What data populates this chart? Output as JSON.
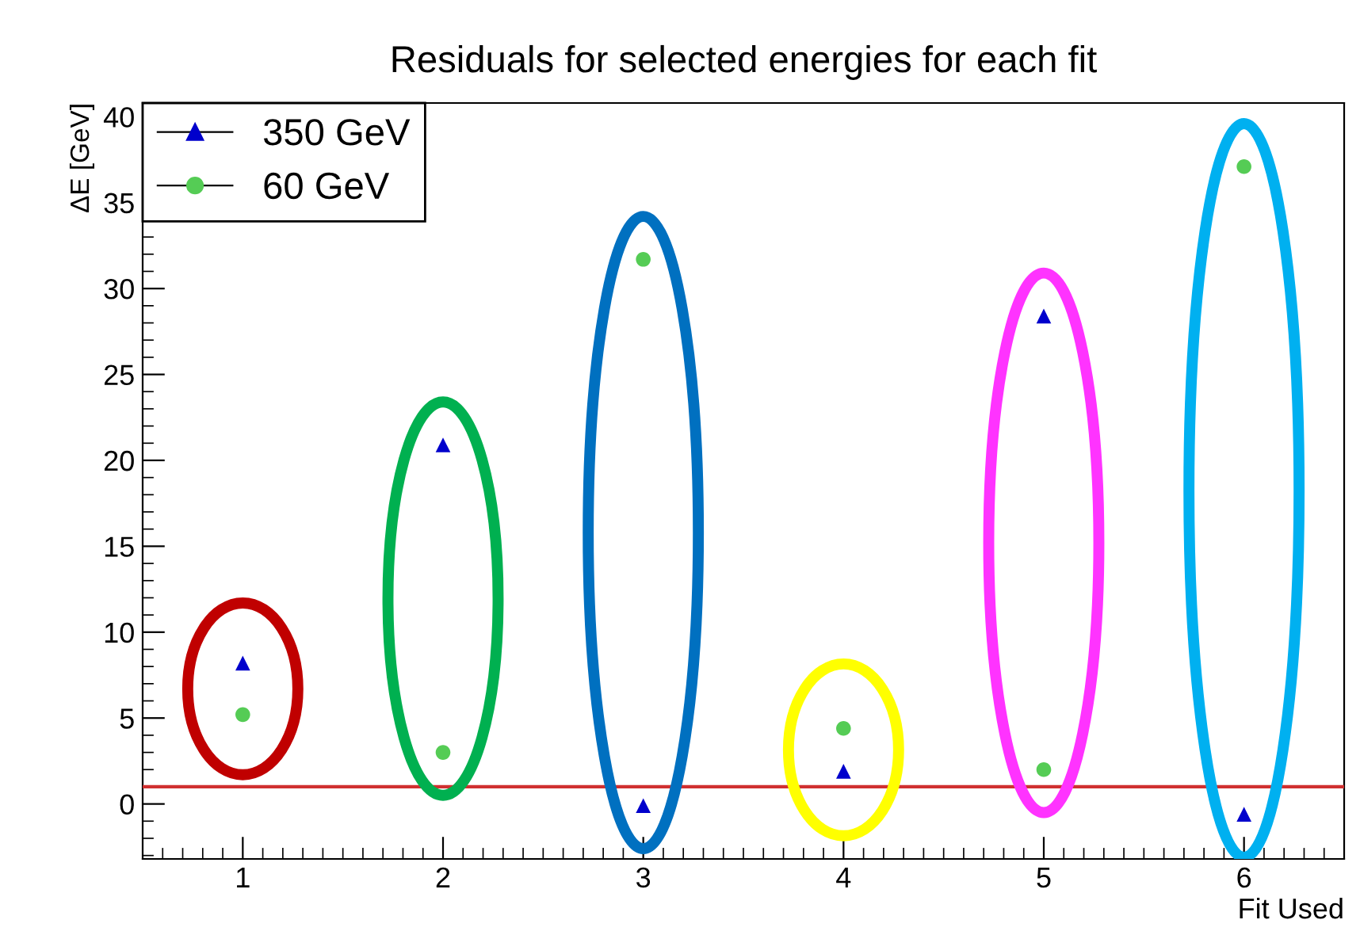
{
  "chart_data": {
    "type": "scatter",
    "title": "Residuals for selected energies for each fit",
    "xlabel": "Fit Used",
    "ylabel": "ΔE [GeV]",
    "x": [
      1,
      2,
      3,
      4,
      5,
      6
    ],
    "series": [
      {
        "name": "350 GeV",
        "color": "#0000cc",
        "marker": "triangle",
        "values": [
          8.2,
          20.9,
          -0.1,
          1.9,
          28.4,
          -0.6
        ]
      },
      {
        "name": "60 GeV",
        "color": "#55cc55",
        "marker": "circle",
        "values": [
          5.2,
          3.0,
          31.7,
          4.4,
          2.0,
          37.1
        ]
      }
    ],
    "ref_lines": [
      {
        "axis": "y",
        "value": 1,
        "color": "#d03030"
      }
    ],
    "xlim": [
      0.5,
      6.5
    ],
    "xticks": [
      1,
      2,
      3,
      4,
      5,
      6
    ],
    "ylim": [
      -3.2,
      40.8
    ],
    "yticks": [
      0,
      5,
      10,
      15,
      20,
      25,
      30,
      35,
      40
    ],
    "grid": false,
    "legend": "top left"
  }
}
